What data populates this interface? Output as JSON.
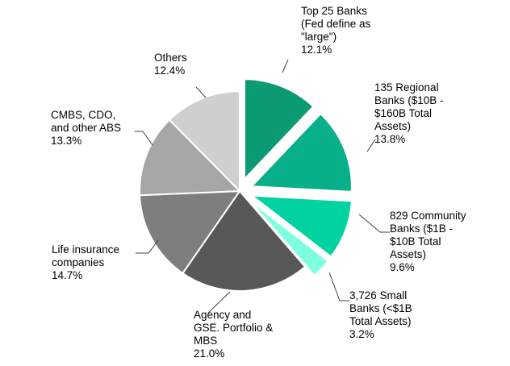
{
  "chart_data": {
    "type": "pie",
    "title": "",
    "series": [
      {
        "name": "",
        "values": [
          {
            "label_lines": [
              "Top 25 Banks",
              "(Fed define as",
              "\"large\")"
            ],
            "percent_text": "12.1%",
            "value": 12.1,
            "exploded": true,
            "color": "#0c9a74"
          },
          {
            "label_lines": [
              "135 Regional",
              "Banks ($10B -",
              "$160B Total",
              "Assets)"
            ],
            "percent_text": "13.8%",
            "value": 13.8,
            "exploded": true,
            "color": "#07b088"
          },
          {
            "label_lines": [
              "829 Community",
              "Banks ($1B -",
              "$10B Total",
              "Assets)"
            ],
            "percent_text": "9.6%",
            "value": 9.6,
            "exploded": true,
            "color": "#00d2a0"
          },
          {
            "label_lines": [
              "3,726 Small",
              "Banks (<$1B",
              "Total Assets)"
            ],
            "percent_text": "3.2%",
            "value": 3.2,
            "exploded": true,
            "color": "#7effe0"
          },
          {
            "label_lines": [
              "Agency and",
              "GSE. Portfolio &",
              "MBS"
            ],
            "percent_text": "21.0%",
            "value": 21.0,
            "exploded": false,
            "color": "#585858"
          },
          {
            "label_lines": [
              "Life insurance",
              "companies"
            ],
            "percent_text": "14.7%",
            "value": 14.7,
            "exploded": false,
            "color": "#7e7e7e"
          },
          {
            "label_lines": [
              "CMBS, CDO,",
              "and other ABS"
            ],
            "percent_text": "13.3%",
            "value": 13.3,
            "exploded": false,
            "color": "#a6a6a6"
          },
          {
            "label_lines": [
              "Others"
            ],
            "percent_text": "12.4%",
            "value": 12.4,
            "exploded": false,
            "color": "#d0cfd0"
          }
        ]
      }
    ],
    "start_angle_deg": 0,
    "direction": "clockwise",
    "legend": "none"
  }
}
